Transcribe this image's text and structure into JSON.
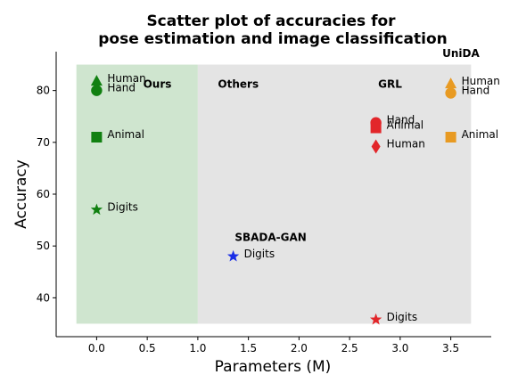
{
  "chart_data": {
    "type": "scatter",
    "title_line1": "Scatter plot of accuracies for",
    "title_line2": "pose estimation and image classification",
    "xlabel": "Parameters (M)",
    "ylabel": "Accuracy",
    "xlim": [
      -0.4,
      3.9
    ],
    "ylim": [
      32.5,
      87.5
    ],
    "xticks": [
      0.0,
      0.5,
      1.0,
      1.5,
      2.0,
      2.5,
      3.0,
      3.5
    ],
    "xtick_labels": [
      "0.0",
      "0.5",
      "1.0",
      "1.5",
      "2.0",
      "2.5",
      "3.0",
      "3.5"
    ],
    "yticks": [
      40,
      50,
      60,
      70,
      80
    ],
    "ytick_labels": [
      "40",
      "50",
      "60",
      "70",
      "80"
    ],
    "regions": [
      {
        "x_range": [
          -0.2,
          1.0
        ],
        "y_range": [
          35,
          85
        ],
        "color": "#cfe5cf"
      },
      {
        "x_range": [
          1.0,
          3.7
        ],
        "y_range": [
          35,
          85
        ],
        "color": "#e4e4e4"
      }
    ],
    "group_labels": [
      {
        "text": "Ours",
        "x": 0.6,
        "y": 80.5
      },
      {
        "text": "Others",
        "x": 1.4,
        "y": 80.5
      },
      {
        "text": "GRL",
        "x": 2.9,
        "y": 80.5
      },
      {
        "text": "UniDA",
        "x": 3.6,
        "y": 86.5
      },
      {
        "text": "SBADA-GAN",
        "x": 1.72,
        "y": 51.0
      }
    ],
    "series": [
      {
        "name": "Ours",
        "color": "#118011",
        "points": [
          {
            "x": 0.0,
            "y": 81.8,
            "marker": "triangle",
            "label": "Human"
          },
          {
            "x": 0.0,
            "y": 80.0,
            "marker": "circle",
            "label": "Hand"
          },
          {
            "x": 0.0,
            "y": 71.0,
            "marker": "square",
            "label": "Animal"
          },
          {
            "x": 0.0,
            "y": 57.0,
            "marker": "star",
            "label": "Digits"
          }
        ]
      },
      {
        "name": "SBADA-GAN",
        "color": "#1a2ee6",
        "points": [
          {
            "x": 1.35,
            "y": 48.0,
            "marker": "star",
            "label": "Digits"
          }
        ]
      },
      {
        "name": "GRL",
        "color": "#e2262a",
        "points": [
          {
            "x": 2.76,
            "y": 73.8,
            "marker": "circle",
            "label": "Hand"
          },
          {
            "x": 2.76,
            "y": 72.8,
            "marker": "square",
            "label": "Animal"
          },
          {
            "x": 2.76,
            "y": 69.2,
            "marker": "diamond",
            "label": "Human"
          },
          {
            "x": 2.76,
            "y": 35.8,
            "marker": "star",
            "label": "Digits"
          }
        ]
      },
      {
        "name": "UniDA",
        "color": "#e89a22",
        "points": [
          {
            "x": 3.5,
            "y": 81.3,
            "marker": "triangle",
            "label": "Human"
          },
          {
            "x": 3.5,
            "y": 79.5,
            "marker": "circle",
            "label": "Hand"
          },
          {
            "x": 3.5,
            "y": 71.0,
            "marker": "square",
            "label": "Animal"
          }
        ]
      }
    ]
  }
}
